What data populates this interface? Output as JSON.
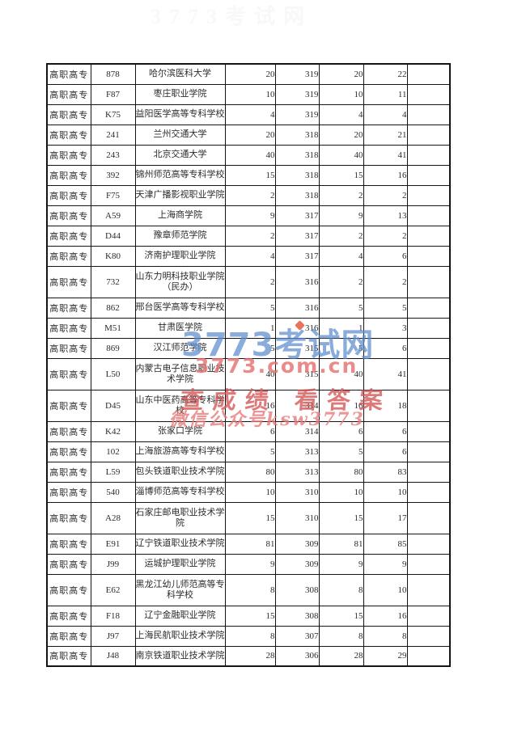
{
  "table": {
    "category_label": "高职高专",
    "rows": [
      {
        "cells": [
          "高职高专",
          "878",
          "哈尔滨医科大学",
          "20",
          "319",
          "20",
          "22",
          ""
        ]
      },
      {
        "cells": [
          "高职高专",
          "F87",
          "枣庄职业学院",
          "10",
          "319",
          "10",
          "11",
          ""
        ]
      },
      {
        "cells": [
          "高职高专",
          "K75",
          "益阳医学高等专科学校",
          "4",
          "319",
          "4",
          "4",
          ""
        ]
      },
      {
        "cells": [
          "高职高专",
          "241",
          "兰州交通大学",
          "20",
          "318",
          "20",
          "21",
          ""
        ]
      },
      {
        "cells": [
          "高职高专",
          "243",
          "北京交通大学",
          "40",
          "318",
          "40",
          "41",
          ""
        ]
      },
      {
        "cells": [
          "高职高专",
          "392",
          "锦州师范高等专科学校",
          "15",
          "318",
          "15",
          "16",
          ""
        ]
      },
      {
        "cells": [
          "高职高专",
          "F75",
          "天津广播影视职业学院",
          "2",
          "318",
          "2",
          "2",
          ""
        ]
      },
      {
        "cells": [
          "高职高专",
          "A59",
          "上海商学院",
          "9",
          "317",
          "9",
          "13",
          ""
        ]
      },
      {
        "cells": [
          "高职高专",
          "D44",
          "豫章师范学院",
          "2",
          "317",
          "2",
          "2",
          ""
        ]
      },
      {
        "cells": [
          "高职高专",
          "K80",
          "济南护理职业学院",
          "4",
          "317",
          "4",
          "6",
          ""
        ]
      },
      {
        "cells": [
          "高职高专",
          "732",
          "山东力明科技职业学院\n（民办）",
          "2",
          "316",
          "2",
          "2",
          ""
        ]
      },
      {
        "cells": [
          "高职高专",
          "862",
          "邢台医学高等专科学校",
          "5",
          "316",
          "5",
          "5",
          ""
        ]
      },
      {
        "cells": [
          "高职高专",
          "M51",
          "甘肃医学院",
          "1",
          "316",
          "1",
          "3",
          ""
        ]
      },
      {
        "cells": [
          "高职高专",
          "869",
          "汉江师范学院",
          "5",
          "315",
          "5",
          "6",
          ""
        ]
      },
      {
        "cells": [
          "高职高专",
          "L50",
          "内蒙古电子信息职业技\n术学院",
          "40",
          "315",
          "40",
          "41",
          ""
        ]
      },
      {
        "cells": [
          "高职高专",
          "D45",
          "山东中医药高等专科学\n校",
          "16",
          "314",
          "16",
          "18",
          ""
        ]
      },
      {
        "cells": [
          "高职高专",
          "K42",
          "张家口学院",
          "6",
          "314",
          "6",
          "6",
          ""
        ]
      },
      {
        "cells": [
          "高职高专",
          "102",
          "上海旅游高等专科学校",
          "5",
          "313",
          "5",
          "6",
          ""
        ]
      },
      {
        "cells": [
          "高职高专",
          "L59",
          "包头铁道职业技术学院",
          "80",
          "313",
          "80",
          "83",
          ""
        ]
      },
      {
        "cells": [
          "高职高专",
          "540",
          "淄博师范高等专科学校",
          "10",
          "310",
          "10",
          "10",
          ""
        ]
      },
      {
        "cells": [
          "高职高专",
          "A28",
          "石家庄邮电职业技术学\n院",
          "15",
          "310",
          "15",
          "17",
          ""
        ]
      },
      {
        "cells": [
          "高职高专",
          "E91",
          "辽宁铁道职业技术学院",
          "81",
          "309",
          "81",
          "85",
          ""
        ]
      },
      {
        "cells": [
          "高职高专",
          "J99",
          "运城护理职业学院",
          "9",
          "309",
          "9",
          "9",
          ""
        ]
      },
      {
        "cells": [
          "高职高专",
          "E62",
          "黑龙江幼儿师范高等专\n科学校",
          "8",
          "308",
          "8",
          "10",
          ""
        ]
      },
      {
        "cells": [
          "高职高专",
          "F18",
          "辽宁金融职业学院",
          "15",
          "308",
          "15",
          "16",
          ""
        ]
      },
      {
        "cells": [
          "高职高专",
          "J97",
          "上海民航职业技术学院",
          "8",
          "307",
          "8",
          "8",
          ""
        ]
      },
      {
        "cells": [
          "高职高专",
          "J48",
          "南京铁道职业技术学院",
          "28",
          "306",
          "28",
          "29",
          ""
        ]
      }
    ]
  },
  "watermarks": {
    "top_faint_text": "3773考试网",
    "brand_text": "3773考试网",
    "domain_text": "3773.com.cn",
    "slogan_text": "查成绩 看答案",
    "wechat_text": "微信公众号ksw3773",
    "brand_color": "#5d8ccd",
    "red_color": "#e07878",
    "logo_dot_color": "#e85a3c"
  }
}
